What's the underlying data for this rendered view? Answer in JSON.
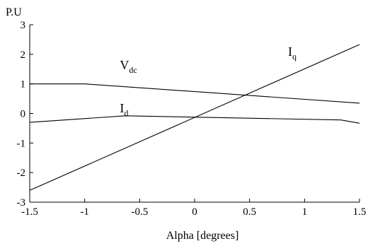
{
  "chart_data": {
    "type": "line",
    "title": "",
    "xlabel": "Alpha [degrees]",
    "ylabel": "P.U",
    "xlim": [
      -1.5,
      1.5
    ],
    "ylim": [
      -3,
      3
    ],
    "xticks": [
      -1.5,
      -1,
      -0.5,
      0,
      0.5,
      1,
      1.5
    ],
    "yticks": [
      -3,
      -2,
      -1,
      0,
      1,
      2,
      3
    ],
    "xtick_labels": [
      "-1.5",
      "-1",
      "-0.5",
      "0",
      "0.5",
      "1",
      "1.5"
    ],
    "ytick_labels": [
      "-3",
      "-2",
      "-1",
      "0",
      "1",
      "2",
      "3"
    ],
    "grid": false,
    "series": [
      {
        "name": "Vdc",
        "label_main": "V",
        "label_sub": "dc",
        "points": [
          [
            -1.5,
            1.0
          ],
          [
            -1.0,
            1.0
          ],
          [
            1.5,
            0.35
          ]
        ]
      },
      {
        "name": "Id",
        "label_main": "I",
        "label_sub": "d",
        "points": [
          [
            -1.5,
            -0.3
          ],
          [
            -0.63,
            -0.08
          ],
          [
            1.33,
            -0.22
          ],
          [
            1.5,
            -0.33
          ]
        ]
      },
      {
        "name": "Iq",
        "label_main": "I",
        "label_sub": "q",
        "points": [
          [
            -1.5,
            -2.6
          ],
          [
            1.5,
            2.33
          ]
        ]
      }
    ]
  }
}
